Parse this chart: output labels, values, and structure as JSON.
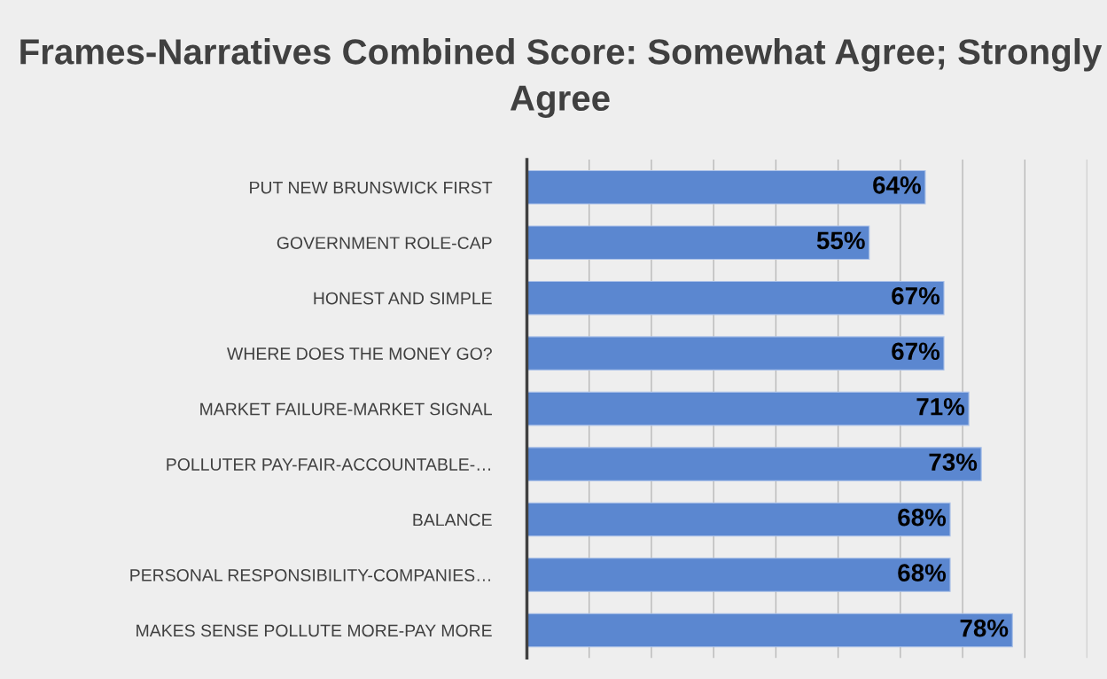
{
  "chart_data": {
    "type": "bar",
    "orientation": "horizontal",
    "title": "Frames-Narratives Combined Score: Somewhat Agree; Strongly Agree",
    "categories": [
      "PUT NEW BRUNSWICK FIRST",
      "GOVERNMENT ROLE-CAP",
      "HONEST AND SIMPLE",
      "WHERE DOES THE MONEY GO?",
      "MARKET FAILURE-MARKET SIGNAL",
      "POLLUTER PAY-FAIR-ACCOUNTABLE-…",
      "BALANCE",
      "PERSONAL RESPONSIBILITY-COMPANIES…",
      "MAKES SENSE POLLUTE MORE-PAY MORE"
    ],
    "values": [
      64,
      55,
      67,
      67,
      71,
      73,
      68,
      68,
      78
    ],
    "value_labels": [
      "64%",
      "55%",
      "67%",
      "67%",
      "71%",
      "73%",
      "68%",
      "68%",
      "78%"
    ],
    "color": "#5b87d0",
    "xlim": [
      0,
      90
    ],
    "xticks": [
      {
        "value": 0,
        "label": null
      },
      {
        "value": 10,
        "label": null
      },
      {
        "value": 20,
        "label": null
      },
      {
        "value": 30,
        "label": null
      },
      {
        "value": 40,
        "label": null
      },
      {
        "value": 50,
        "label": null
      },
      {
        "value": 60,
        "label": null
      },
      {
        "value": 70,
        "label": null
      },
      {
        "value": 80,
        "label": null
      },
      {
        "value": 90,
        "label": null
      }
    ],
    "grid": "x",
    "tick_labels": "y"
  }
}
